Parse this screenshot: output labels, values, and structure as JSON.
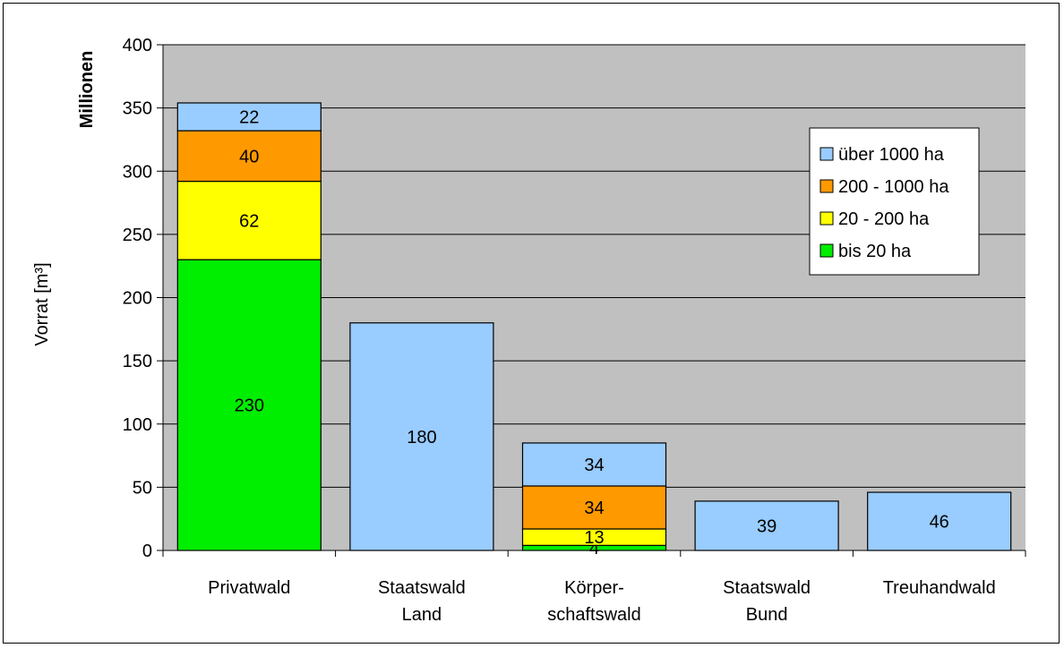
{
  "chart_data": {
    "type": "bar",
    "stacked": true,
    "categories": [
      [
        "Privatwald"
      ],
      [
        "Staatswald",
        "Land"
      ],
      [
        "Körper-",
        "schaftswald"
      ],
      [
        "Staatswald",
        "Bund"
      ],
      [
        "Treuhandwald"
      ]
    ],
    "series": [
      {
        "name": "bis 20 ha",
        "color": "#00ee00",
        "values": [
          230,
          null,
          4,
          null,
          null
        ]
      },
      {
        "name": "20 - 200 ha",
        "color": "#ffff00",
        "values": [
          62,
          null,
          13,
          null,
          null
        ]
      },
      {
        "name": "200 - 1000 ha",
        "color": "#ff9900",
        "values": [
          40,
          null,
          34,
          null,
          null
        ]
      },
      {
        "name": "über 1000 ha",
        "color": "#99ccff",
        "values": [
          22,
          180,
          34,
          39,
          46
        ]
      }
    ],
    "ylabel": "Vorrat [m³]",
    "yunit_label": "Millionen",
    "ylim": [
      0,
      400
    ],
    "yticks": [
      0,
      50,
      100,
      150,
      200,
      250,
      300,
      350,
      400
    ],
    "grid": true,
    "plot_background": "#c0c0c0",
    "legend_position": "right",
    "legend_order": [
      "über 1000 ha",
      "200 - 1000 ha",
      "20 - 200 ha",
      "bis 20 ha"
    ]
  }
}
